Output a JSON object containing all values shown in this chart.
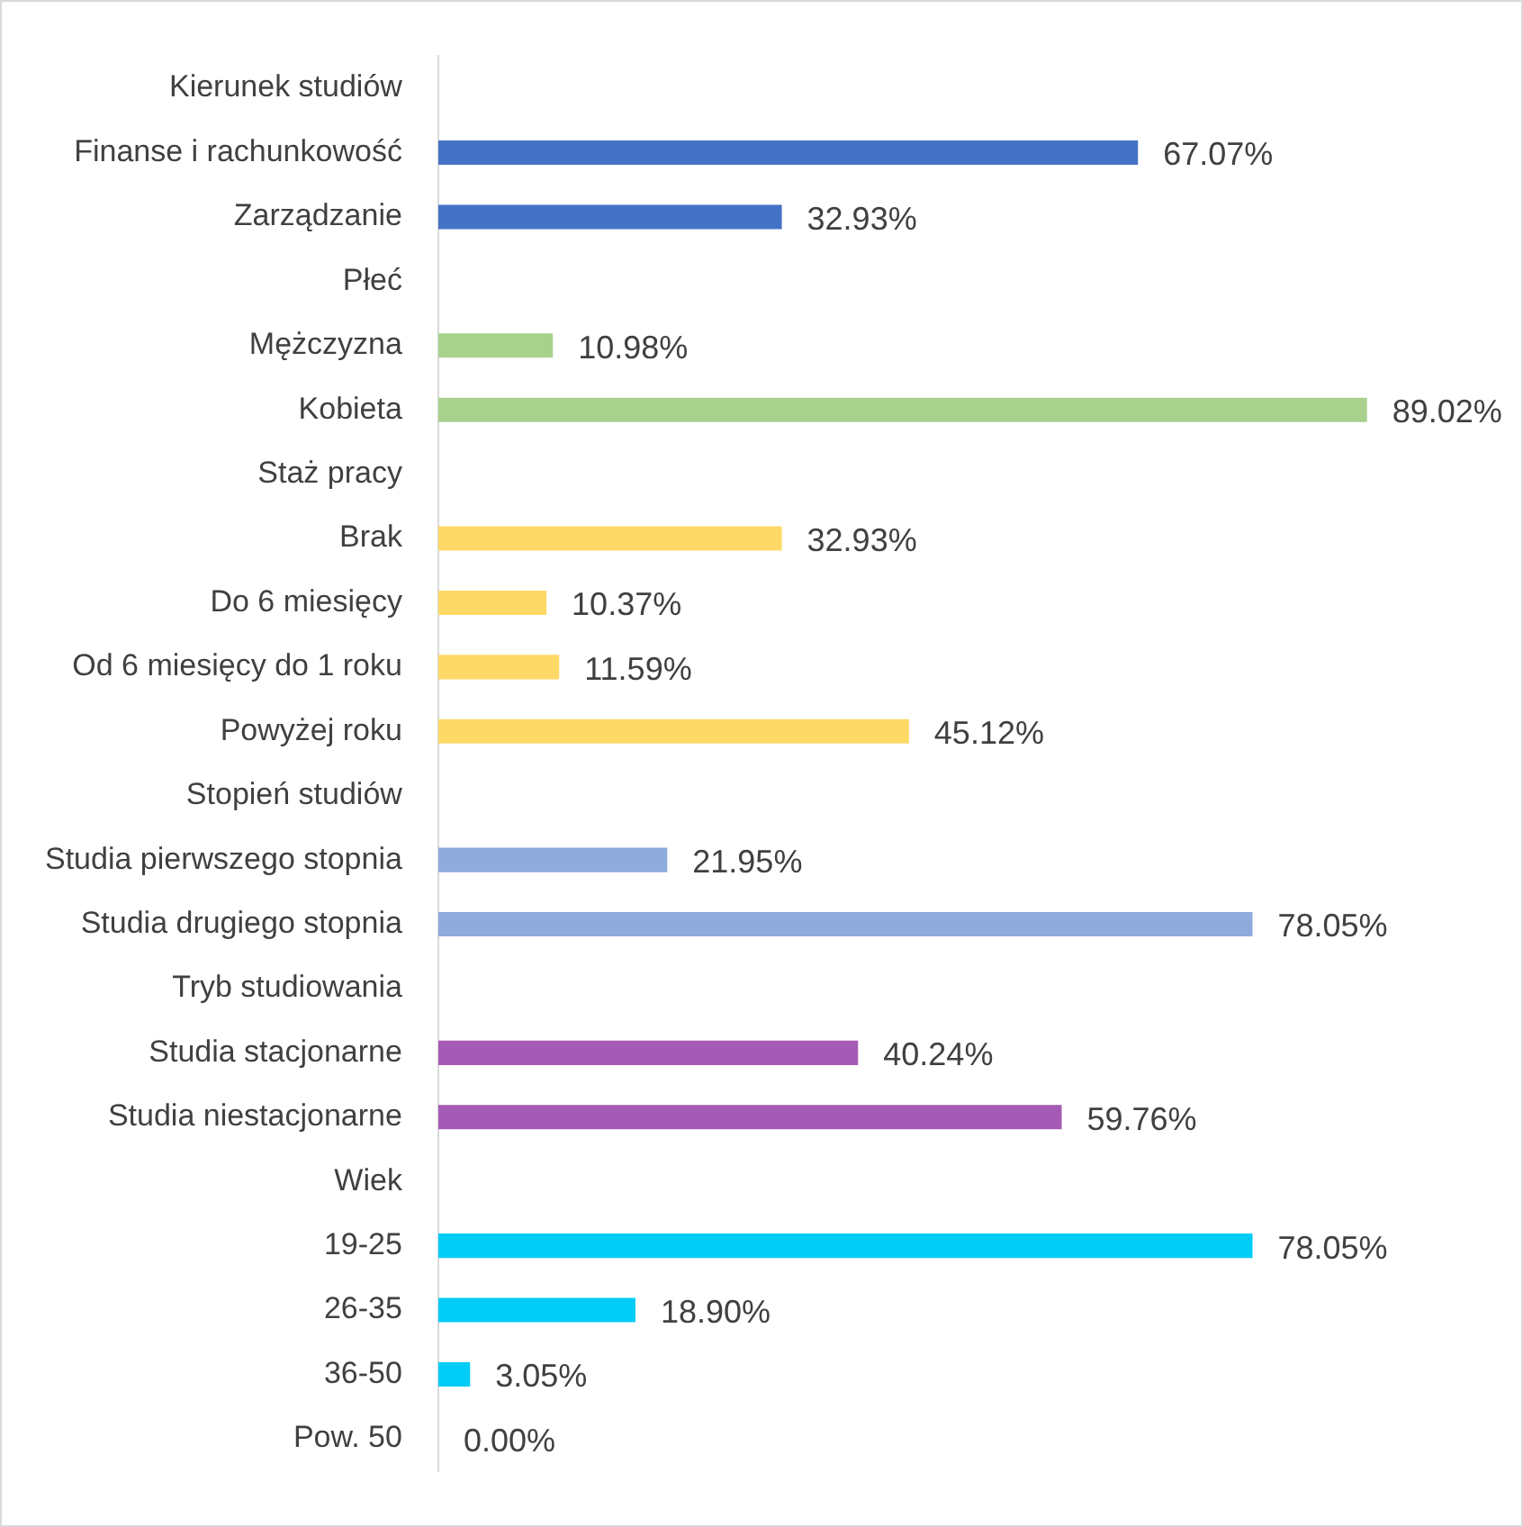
{
  "chart_data": {
    "type": "bar",
    "orientation": "horizontal",
    "categories": [
      "Kierunek studiów",
      "Finanse i rachunkowość",
      "Zarządzanie",
      "Płeć",
      "Mężczyzna",
      "Kobieta",
      "Staż pracy",
      "Brak",
      "Do 6 miesięcy",
      "Od 6 miesięcy do 1 roku",
      "Powyżej roku",
      "Stopień studiów",
      "Studia pierwszego stopnia",
      "Studia drugiego stopnia",
      "Tryb studiowania",
      "Studia stacjonarne",
      "Studia niestacjonarne",
      "Wiek",
      "19-25",
      "26-35",
      "36-50",
      "Pow. 50"
    ],
    "values": [
      null,
      67.07,
      32.93,
      null,
      10.98,
      89.02,
      null,
      32.93,
      10.37,
      11.59,
      45.12,
      null,
      21.95,
      78.05,
      null,
      40.24,
      59.76,
      null,
      78.05,
      18.9,
      3.05,
      0
    ],
    "colors": [
      "#4472c4",
      "#4472c4",
      "#4472c4",
      "#a9d18e",
      "#a9d18e",
      "#a9d18e",
      "#ffd966",
      "#ffd966",
      "#ffd966",
      "#ffd966",
      "#ffd966",
      "#8faadc",
      "#8faadc",
      "#8faadc",
      "#a55bb5",
      "#a55bb5",
      "#a55bb5",
      "#00ccf5",
      "#00ccf5",
      "#00ccf5",
      "#00ccf5",
      "#00ccf5"
    ],
    "value_labels": [
      null,
      "67.07%",
      "32.93%",
      null,
      "10.98%",
      "89.02%",
      null,
      "32.93%",
      "10.37%",
      "11.59%",
      "45.12%",
      null,
      "21.95%",
      "78.05%",
      null,
      "40.24%",
      "59.76%",
      null,
      "78.05%",
      "18.90%",
      "3.05%",
      "0.00%"
    ],
    "tick_labels": "y",
    "grid": false,
    "legend": false
  }
}
